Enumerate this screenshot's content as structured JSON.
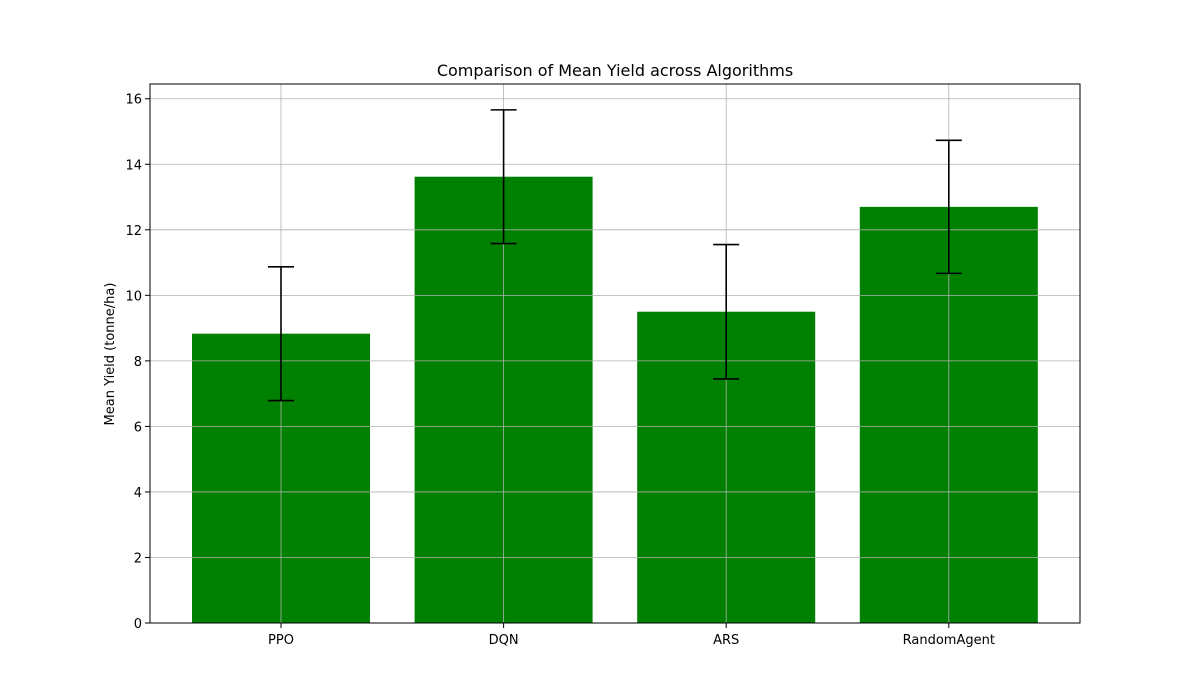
{
  "chart_data": {
    "type": "bar",
    "title": "Comparison of Mean Yield across Algorithms",
    "xlabel": "",
    "ylabel": "Mean Yield (tonne/ha)",
    "categories": [
      "PPO",
      "DQN",
      "ARS",
      "RandomAgent"
    ],
    "values": [
      8.83,
      13.62,
      9.5,
      12.7
    ],
    "error": [
      2.04,
      2.04,
      2.05,
      2.03
    ],
    "ylim": [
      0,
      16.45
    ],
    "yticks": [
      0,
      2,
      4,
      6,
      8,
      10,
      12,
      14,
      16
    ],
    "grid": true,
    "bar_color": "#008000",
    "error_color": "#000000"
  }
}
